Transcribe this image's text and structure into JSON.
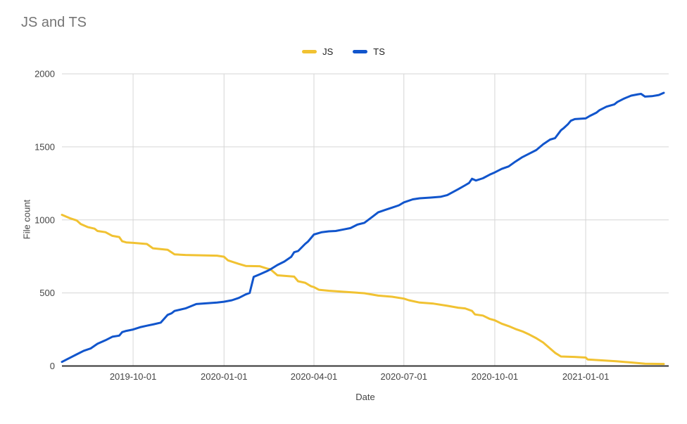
{
  "chart_data": {
    "type": "line",
    "title": "JS and TS",
    "xlabel": "Date",
    "ylabel": "File count",
    "ylim": [
      0,
      2000
    ],
    "y_ticks": [
      0,
      500,
      1000,
      1500,
      2000
    ],
    "x_ticks": [
      "2019-10-01",
      "2020-01-01",
      "2020-04-01",
      "2020-07-01",
      "2020-10-01",
      "2021-01-01"
    ],
    "x_range": [
      "2019-07-21",
      "2021-03-26"
    ],
    "grid": true,
    "legend_position": "top",
    "series": [
      {
        "name": "JS",
        "color": "#F1C232",
        "points": [
          [
            "2019-07-21",
            1035
          ],
          [
            "2019-07-29",
            1012
          ],
          [
            "2019-08-05",
            996
          ],
          [
            "2019-08-09",
            972
          ],
          [
            "2019-08-16",
            951
          ],
          [
            "2019-08-23",
            940
          ],
          [
            "2019-08-26",
            924
          ],
          [
            "2019-09-03",
            916
          ],
          [
            "2019-09-10",
            891
          ],
          [
            "2019-09-17",
            883
          ],
          [
            "2019-09-20",
            854
          ],
          [
            "2019-09-24",
            846
          ],
          [
            "2019-10-01",
            843
          ],
          [
            "2019-10-15",
            835
          ],
          [
            "2019-10-21",
            806
          ],
          [
            "2019-11-05",
            795
          ],
          [
            "2019-11-12",
            764
          ],
          [
            "2019-11-23",
            760
          ],
          [
            "2019-12-25",
            755
          ],
          [
            "2020-01-01",
            748
          ],
          [
            "2020-01-05",
            723
          ],
          [
            "2020-01-16",
            699
          ],
          [
            "2020-01-23",
            685
          ],
          [
            "2020-02-06",
            683
          ],
          [
            "2020-02-13",
            668
          ],
          [
            "2020-02-17",
            662
          ],
          [
            "2020-02-24",
            621
          ],
          [
            "2020-03-12",
            612
          ],
          [
            "2020-03-16",
            580
          ],
          [
            "2020-03-23",
            570
          ],
          [
            "2020-03-29",
            546
          ],
          [
            "2020-04-01",
            540
          ],
          [
            "2020-04-06",
            522
          ],
          [
            "2020-04-16",
            515
          ],
          [
            "2020-05-08",
            505
          ],
          [
            "2020-05-22",
            498
          ],
          [
            "2020-06-05",
            482
          ],
          [
            "2020-06-19",
            474
          ],
          [
            "2020-07-01",
            461
          ],
          [
            "2020-07-06",
            450
          ],
          [
            "2020-07-17",
            434
          ],
          [
            "2020-07-31",
            427
          ],
          [
            "2020-08-14",
            412
          ],
          [
            "2020-08-25",
            399
          ],
          [
            "2020-09-01",
            394
          ],
          [
            "2020-09-08",
            377
          ],
          [
            "2020-09-11",
            353
          ],
          [
            "2020-09-19",
            345
          ],
          [
            "2020-09-26",
            322
          ],
          [
            "2020-10-01",
            313
          ],
          [
            "2020-10-08",
            290
          ],
          [
            "2020-10-15",
            273
          ],
          [
            "2020-10-22",
            253
          ],
          [
            "2020-10-29",
            237
          ],
          [
            "2020-11-05",
            215
          ],
          [
            "2020-11-12",
            190
          ],
          [
            "2020-11-19",
            161
          ],
          [
            "2020-11-26",
            120
          ],
          [
            "2020-12-01",
            90
          ],
          [
            "2020-12-07",
            65
          ],
          [
            "2020-12-21",
            62
          ],
          [
            "2021-01-01",
            58
          ],
          [
            "2021-01-03",
            45
          ],
          [
            "2021-01-19",
            38
          ],
          [
            "2021-02-02",
            32
          ],
          [
            "2021-02-16",
            24
          ],
          [
            "2021-03-02",
            16
          ],
          [
            "2021-03-21",
            14
          ]
        ]
      },
      {
        "name": "TS",
        "color": "#1155CC",
        "points": [
          [
            "2019-07-21",
            28
          ],
          [
            "2019-07-29",
            56
          ],
          [
            "2019-08-05",
            80
          ],
          [
            "2019-08-12",
            104
          ],
          [
            "2019-08-19",
            120
          ],
          [
            "2019-08-26",
            152
          ],
          [
            "2019-09-03",
            176
          ],
          [
            "2019-09-10",
            200
          ],
          [
            "2019-09-17",
            208
          ],
          [
            "2019-09-20",
            232
          ],
          [
            "2019-09-24",
            240
          ],
          [
            "2019-10-01",
            250
          ],
          [
            "2019-10-08",
            265
          ],
          [
            "2019-10-15",
            276
          ],
          [
            "2019-10-22",
            286
          ],
          [
            "2019-10-29",
            297
          ],
          [
            "2019-11-05",
            350
          ],
          [
            "2019-11-09",
            361
          ],
          [
            "2019-11-12",
            377
          ],
          [
            "2019-11-23",
            394
          ],
          [
            "2019-12-04",
            424
          ],
          [
            "2019-12-25",
            434
          ],
          [
            "2020-01-01",
            440
          ],
          [
            "2020-01-09",
            450
          ],
          [
            "2020-01-16",
            466
          ],
          [
            "2020-01-23",
            490
          ],
          [
            "2020-01-27",
            500
          ],
          [
            "2020-01-31",
            610
          ],
          [
            "2020-02-06",
            627
          ],
          [
            "2020-02-13",
            648
          ],
          [
            "2020-02-17",
            662
          ],
          [
            "2020-02-24",
            691
          ],
          [
            "2020-03-02",
            715
          ],
          [
            "2020-03-09",
            747
          ],
          [
            "2020-03-12",
            779
          ],
          [
            "2020-03-16",
            787
          ],
          [
            "2020-03-23",
            835
          ],
          [
            "2020-03-26",
            852
          ],
          [
            "2020-04-01",
            900
          ],
          [
            "2020-04-09",
            916
          ],
          [
            "2020-04-16",
            922
          ],
          [
            "2020-04-23",
            924
          ],
          [
            "2020-05-01",
            935
          ],
          [
            "2020-05-08",
            944
          ],
          [
            "2020-05-15",
            968
          ],
          [
            "2020-05-22",
            980
          ],
          [
            "2020-05-29",
            1015
          ],
          [
            "2020-06-05",
            1052
          ],
          [
            "2020-06-12",
            1068
          ],
          [
            "2020-06-19",
            1084
          ],
          [
            "2020-06-26",
            1100
          ],
          [
            "2020-07-01",
            1120
          ],
          [
            "2020-07-10",
            1141
          ],
          [
            "2020-07-17",
            1148
          ],
          [
            "2020-07-28",
            1153
          ],
          [
            "2020-08-07",
            1158
          ],
          [
            "2020-08-14",
            1170
          ],
          [
            "2020-08-25",
            1210
          ],
          [
            "2020-09-01",
            1237
          ],
          [
            "2020-09-05",
            1253
          ],
          [
            "2020-09-08",
            1282
          ],
          [
            "2020-09-12",
            1270
          ],
          [
            "2020-09-19",
            1285
          ],
          [
            "2020-09-26",
            1310
          ],
          [
            "2020-10-01",
            1325
          ],
          [
            "2020-10-08",
            1349
          ],
          [
            "2020-10-15",
            1366
          ],
          [
            "2020-10-22",
            1400
          ],
          [
            "2020-10-29",
            1430
          ],
          [
            "2020-11-05",
            1454
          ],
          [
            "2020-11-12",
            1478
          ],
          [
            "2020-11-19",
            1518
          ],
          [
            "2020-11-26",
            1550
          ],
          [
            "2020-12-01",
            1560
          ],
          [
            "2020-12-07",
            1614
          ],
          [
            "2020-12-10",
            1630
          ],
          [
            "2020-12-14",
            1655
          ],
          [
            "2020-12-17",
            1679
          ],
          [
            "2020-12-21",
            1690
          ],
          [
            "2021-01-01",
            1695
          ],
          [
            "2021-01-05",
            1711
          ],
          [
            "2021-01-12",
            1735
          ],
          [
            "2021-01-15",
            1751
          ],
          [
            "2021-01-22",
            1775
          ],
          [
            "2021-01-30",
            1791
          ],
          [
            "2021-02-02",
            1807
          ],
          [
            "2021-02-09",
            1831
          ],
          [
            "2021-02-16",
            1851
          ],
          [
            "2021-02-23",
            1860
          ],
          [
            "2021-02-26",
            1863
          ],
          [
            "2021-03-02",
            1844
          ],
          [
            "2021-03-09",
            1847
          ],
          [
            "2021-03-16",
            1855
          ],
          [
            "2021-03-21",
            1870
          ]
        ]
      }
    ]
  }
}
